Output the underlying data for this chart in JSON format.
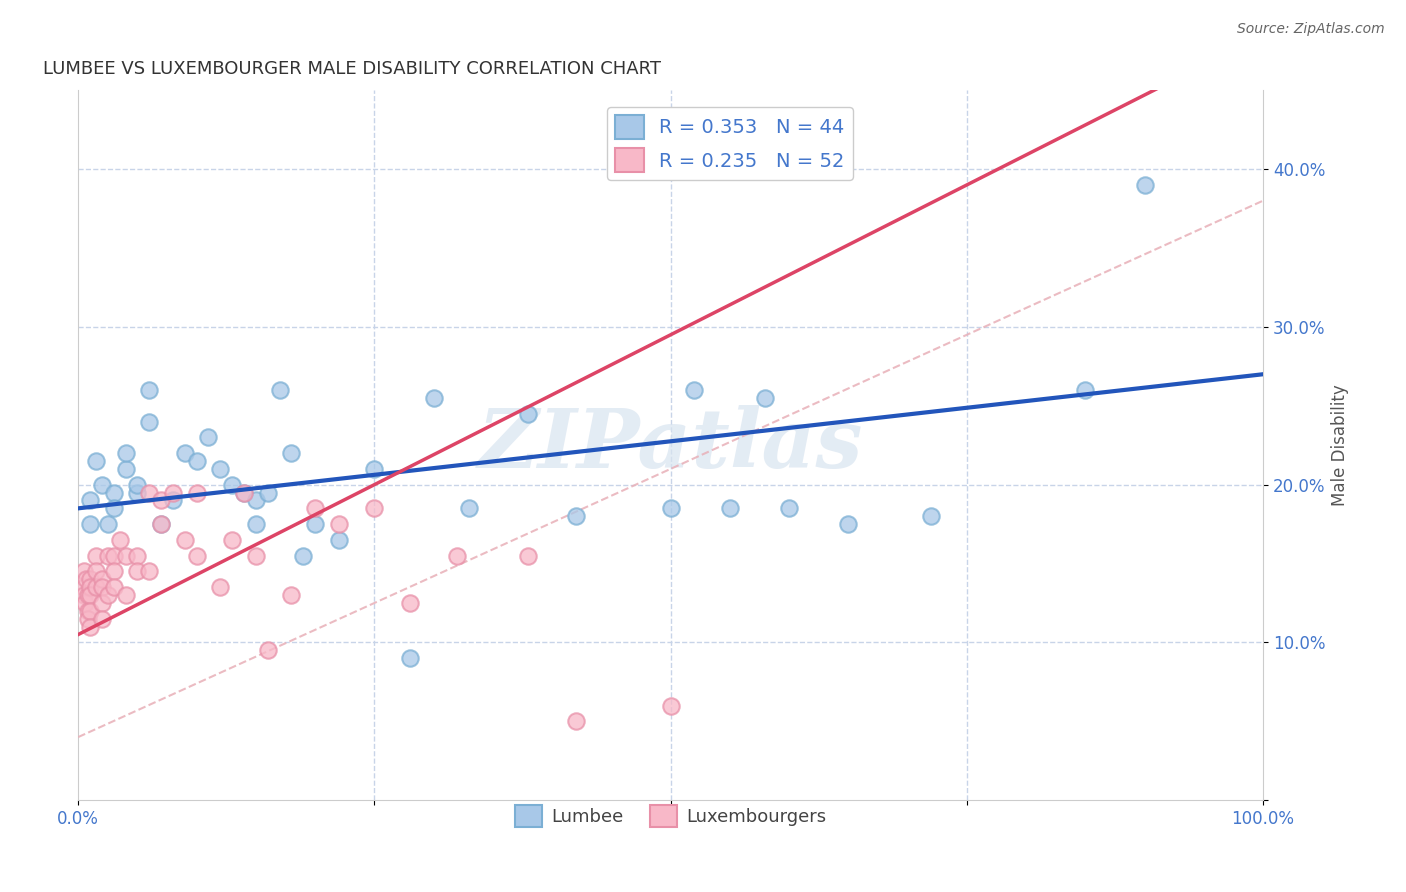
{
  "title": "LUMBEE VS LUXEMBOURGER MALE DISABILITY CORRELATION CHART",
  "source": "Source: ZipAtlas.com",
  "ylabel": "Male Disability",
  "xlim": [
    0,
    1.0
  ],
  "ylim": [
    0,
    0.45
  ],
  "lumbee_color": "#a8c8e8",
  "lumbee_edge_color": "#7bafd4",
  "luxembourger_color": "#f8b8c8",
  "luxembourger_edge_color": "#e890a8",
  "lumbee_line_color": "#2255bb",
  "luxembourger_line_color": "#dd4466",
  "reference_line_color": "#e8b0b8",
  "legend_lumbee_label": "Lumbee",
  "legend_luxembourger_label": "Luxembourgers",
  "R_lumbee": 0.353,
  "N_lumbee": 44,
  "R_luxembourger": 0.235,
  "N_luxembourger": 52,
  "lumbee_x": [
    0.01,
    0.015,
    0.02,
    0.025,
    0.03,
    0.03,
    0.04,
    0.04,
    0.05,
    0.05,
    0.06,
    0.06,
    0.07,
    0.08,
    0.09,
    0.1,
    0.11,
    0.12,
    0.13,
    0.14,
    0.15,
    0.15,
    0.16,
    0.17,
    0.18,
    0.19,
    0.2,
    0.22,
    0.25,
    0.28,
    0.3,
    0.33,
    0.38,
    0.42,
    0.5,
    0.52,
    0.55,
    0.58,
    0.6,
    0.65,
    0.72,
    0.85,
    0.9,
    0.01
  ],
  "lumbee_y": [
    0.19,
    0.215,
    0.2,
    0.175,
    0.195,
    0.185,
    0.21,
    0.22,
    0.195,
    0.2,
    0.24,
    0.26,
    0.175,
    0.19,
    0.22,
    0.215,
    0.23,
    0.21,
    0.2,
    0.195,
    0.175,
    0.19,
    0.195,
    0.26,
    0.22,
    0.155,
    0.175,
    0.165,
    0.21,
    0.09,
    0.255,
    0.185,
    0.245,
    0.18,
    0.185,
    0.26,
    0.185,
    0.255,
    0.185,
    0.175,
    0.18,
    0.26,
    0.39,
    0.175
  ],
  "luxembourger_x": [
    0.005,
    0.005,
    0.005,
    0.006,
    0.007,
    0.008,
    0.008,
    0.008,
    0.01,
    0.01,
    0.01,
    0.01,
    0.01,
    0.015,
    0.015,
    0.015,
    0.02,
    0.02,
    0.02,
    0.02,
    0.025,
    0.025,
    0.03,
    0.03,
    0.03,
    0.035,
    0.04,
    0.04,
    0.05,
    0.05,
    0.06,
    0.06,
    0.07,
    0.07,
    0.08,
    0.09,
    0.1,
    0.1,
    0.12,
    0.13,
    0.14,
    0.15,
    0.16,
    0.18,
    0.2,
    0.22,
    0.25,
    0.28,
    0.32,
    0.38,
    0.42,
    0.5
  ],
  "luxembourger_y": [
    0.145,
    0.135,
    0.13,
    0.125,
    0.14,
    0.12,
    0.13,
    0.115,
    0.14,
    0.135,
    0.13,
    0.12,
    0.11,
    0.155,
    0.145,
    0.135,
    0.14,
    0.135,
    0.125,
    0.115,
    0.155,
    0.13,
    0.155,
    0.145,
    0.135,
    0.165,
    0.155,
    0.13,
    0.155,
    0.145,
    0.195,
    0.145,
    0.19,
    0.175,
    0.195,
    0.165,
    0.195,
    0.155,
    0.135,
    0.165,
    0.195,
    0.155,
    0.095,
    0.13,
    0.185,
    0.175,
    0.185,
    0.125,
    0.155,
    0.155,
    0.05,
    0.06
  ],
  "background_color": "#ffffff",
  "grid_color": "#c8d4e8",
  "watermark": "ZIPatlas",
  "watermark_color": "#d8e4f0",
  "title_fontsize": 13,
  "tick_fontsize": 12,
  "ylabel_fontsize": 12,
  "tick_color": "#4477cc",
  "ylabel_color": "#555555"
}
